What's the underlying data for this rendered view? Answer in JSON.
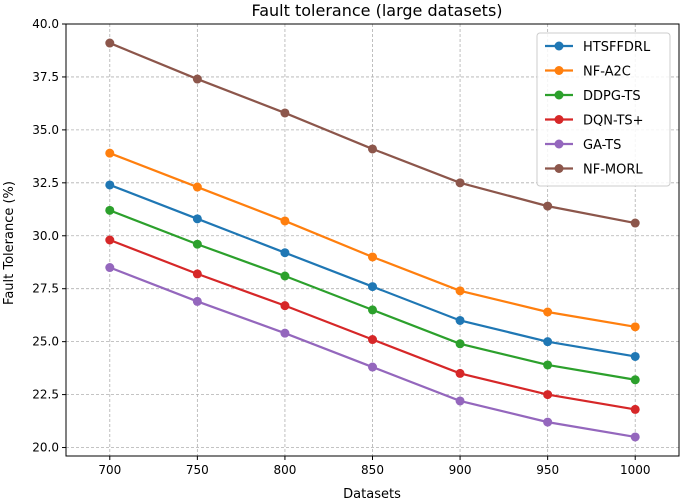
{
  "chart_data": {
    "type": "line",
    "title": "Fault tolerance (large datasets)",
    "xlabel": "Datasets",
    "ylabel": "Fault Tolerance (%)",
    "x": [
      700,
      750,
      800,
      850,
      900,
      950,
      1000
    ],
    "xlim": [
      675,
      1025
    ],
    "ylim": [
      19.6,
      40.0
    ],
    "yticks": [
      "20.0",
      "22.5",
      "25.0",
      "27.5",
      "30.0",
      "32.5",
      "35.0",
      "37.5",
      "40.0"
    ],
    "xticks": [
      "700",
      "750",
      "800",
      "850",
      "900",
      "950",
      "1000"
    ],
    "grid": true,
    "legend": "top-right",
    "series": [
      {
        "name": "HTSFFDRL",
        "color": "#1f77b4",
        "values": [
          32.4,
          30.8,
          29.2,
          27.6,
          26.0,
          25.0,
          24.3
        ]
      },
      {
        "name": "NF-A2C",
        "color": "#ff7f0e",
        "values": [
          33.9,
          32.3,
          30.7,
          29.0,
          27.4,
          26.4,
          25.7
        ]
      },
      {
        "name": "DDPG-TS",
        "color": "#2ca02c",
        "values": [
          31.2,
          29.6,
          28.1,
          26.5,
          24.9,
          23.9,
          23.2
        ]
      },
      {
        "name": "DQN-TS+",
        "color": "#d62728",
        "values": [
          29.8,
          28.2,
          26.7,
          25.1,
          23.5,
          22.5,
          21.8
        ]
      },
      {
        "name": "GA-TS",
        "color": "#9467bd",
        "values": [
          28.5,
          26.9,
          25.4,
          23.8,
          22.2,
          21.2,
          20.5
        ]
      },
      {
        "name": "NF-MORL",
        "color": "#8c564b",
        "values": [
          39.1,
          37.4,
          35.8,
          34.1,
          32.5,
          31.4,
          30.6
        ]
      }
    ]
  }
}
